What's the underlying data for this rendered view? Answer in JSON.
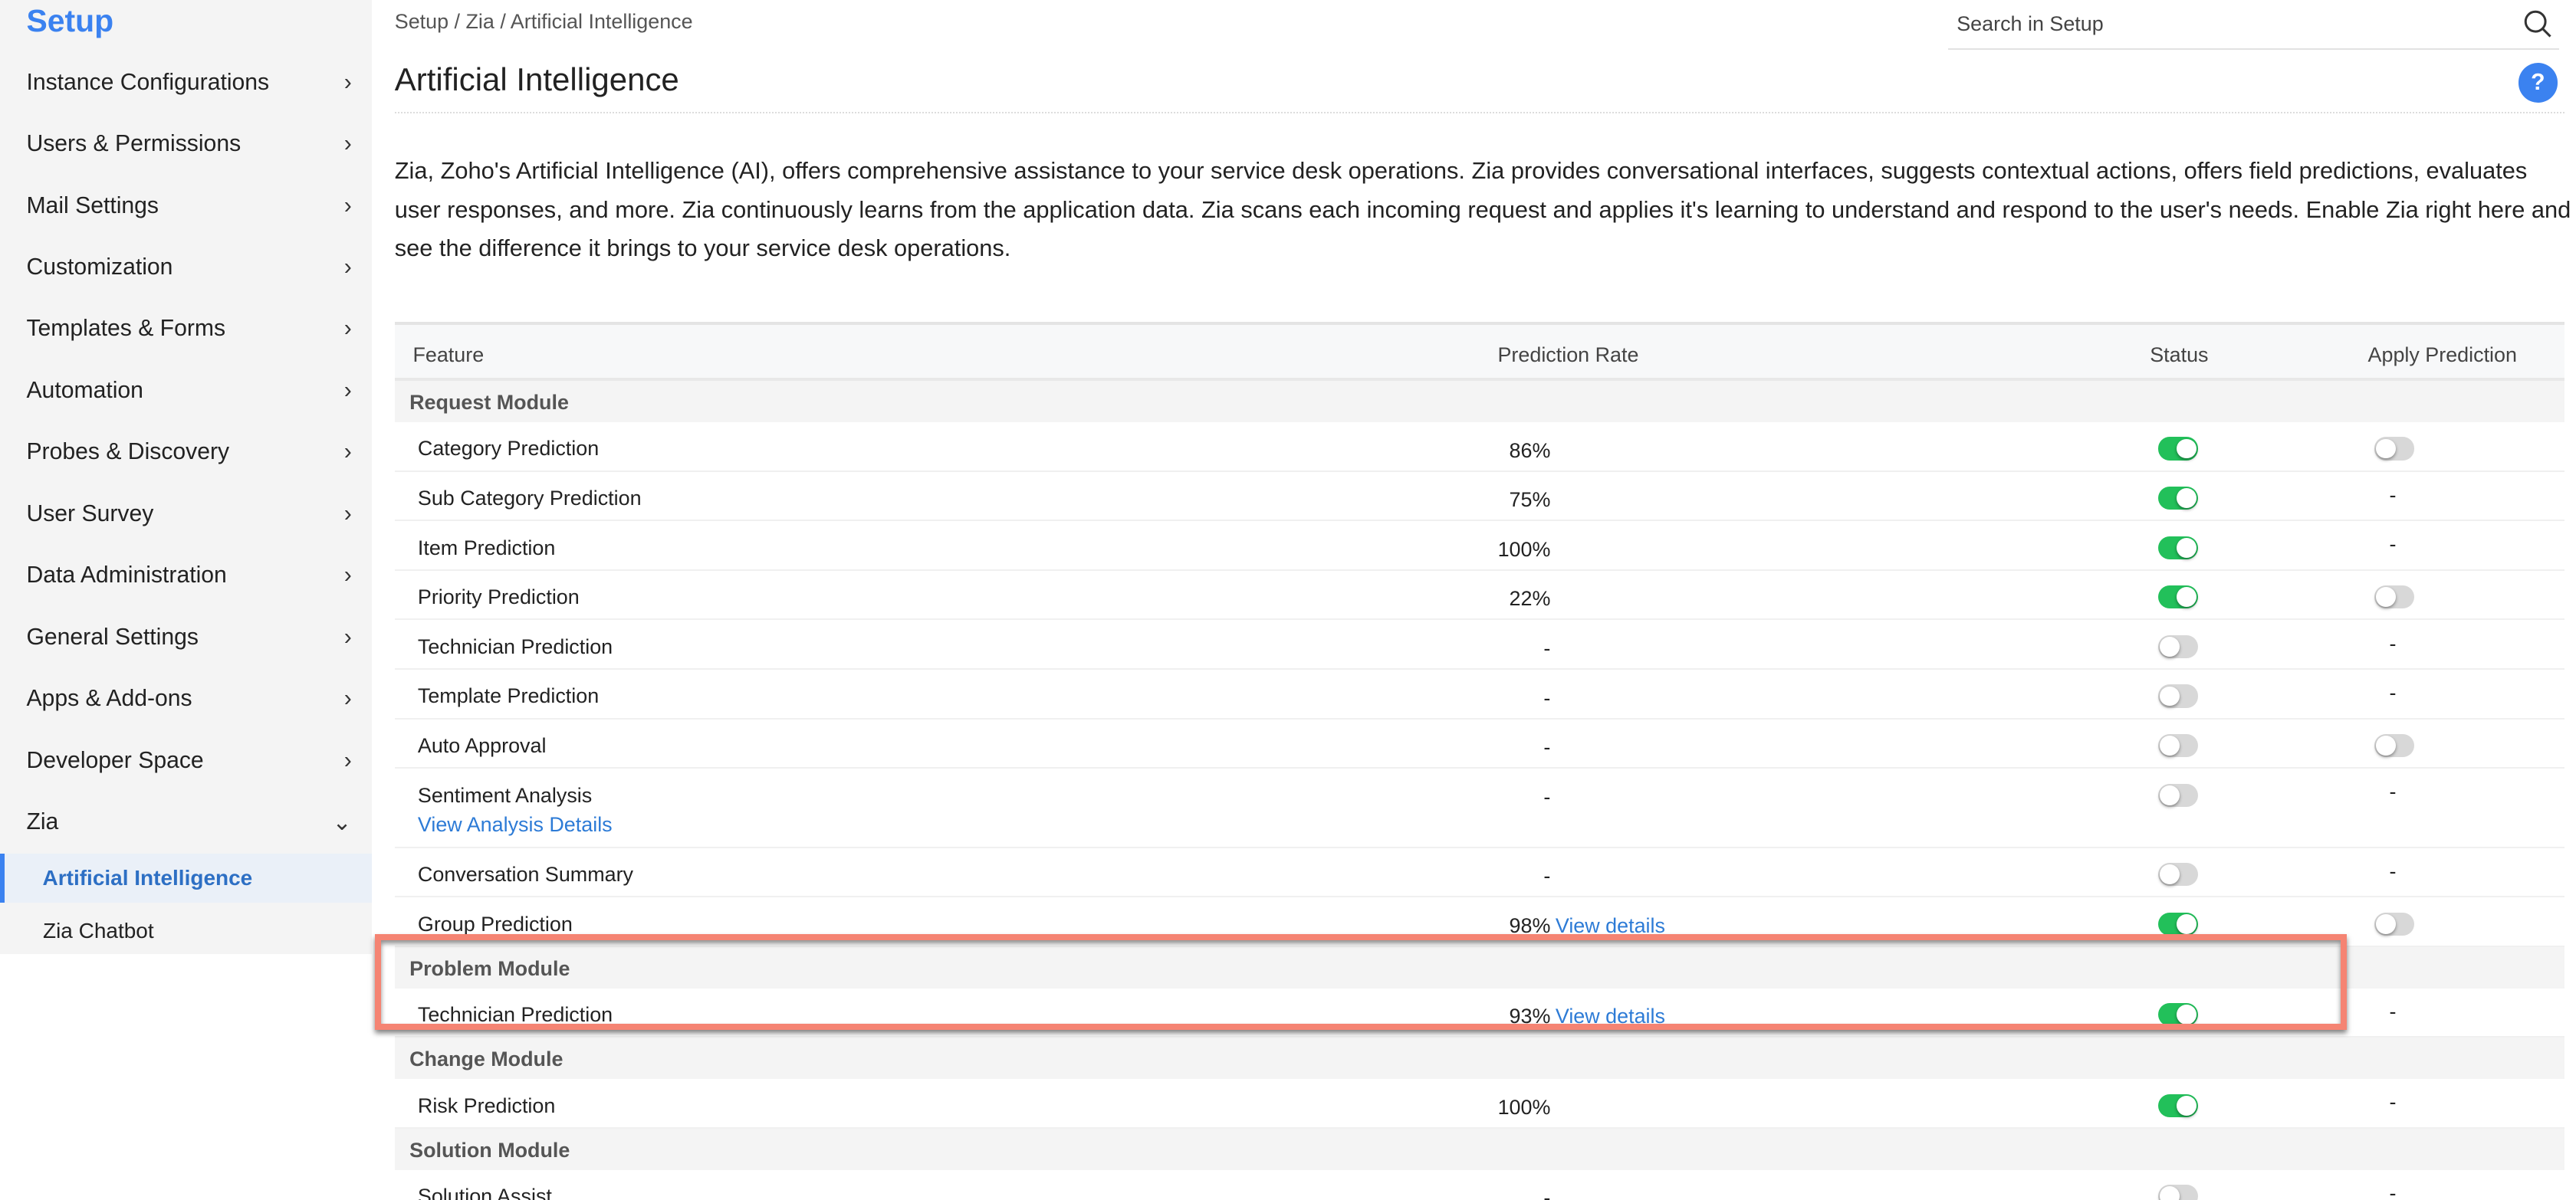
{
  "sidebar": {
    "title": "Setup",
    "items": [
      {
        "label": "Instance Configurations"
      },
      {
        "label": "Users & Permissions"
      },
      {
        "label": "Mail Settings"
      },
      {
        "label": "Customization"
      },
      {
        "label": "Templates & Forms"
      },
      {
        "label": "Automation"
      },
      {
        "label": "Probes & Discovery"
      },
      {
        "label": "User Survey"
      },
      {
        "label": "Data Administration"
      },
      {
        "label": "General Settings"
      },
      {
        "label": "Apps & Add-ons"
      },
      {
        "label": "Developer Space"
      },
      {
        "label": "Zia"
      }
    ],
    "sub_items": [
      {
        "label": "Artificial Intelligence",
        "active": true
      },
      {
        "label": "Zia Chatbot",
        "active": false
      }
    ]
  },
  "header": {
    "breadcrumb": "Setup / Zia / Artificial Intelligence",
    "search_placeholder": "Search in Setup",
    "title": "Artificial Intelligence",
    "help": "?"
  },
  "description": "Zia, Zoho's Artificial Intelligence (AI), offers comprehensive assistance to your service desk operations. Zia provides conversational interfaces, suggests contextual actions, offers field predictions, evaluates user responses, and more. Zia continuously learns from the application data. Zia scans each incoming request and applies it's learning to understand and respond to the user's needs. Enable Zia right here and see the difference it brings to your service desk operations.",
  "table": {
    "columns": [
      "Feature",
      "Prediction Rate",
      "Status",
      "Apply Prediction"
    ],
    "sections": [
      {
        "name": "Request Module",
        "rows": [
          {
            "feature": "Category Prediction",
            "rate": "86%",
            "status": true,
            "apply": false
          },
          {
            "feature": "Sub Category Prediction",
            "rate": "75%",
            "status": true,
            "apply": "-"
          },
          {
            "feature": "Item Prediction",
            "rate": "100%",
            "status": true,
            "apply": "-"
          },
          {
            "feature": "Priority Prediction",
            "rate": "22%",
            "status": true,
            "apply": false
          },
          {
            "feature": "Technician Prediction",
            "rate": "-",
            "status": false,
            "apply": "-"
          },
          {
            "feature": "Template Prediction",
            "rate": "-",
            "status": false,
            "apply": "-"
          },
          {
            "feature": "Auto Approval",
            "rate": "-",
            "status": false,
            "apply": false
          },
          {
            "feature": "Sentiment Analysis",
            "link": "View Analysis Details",
            "rate": "-",
            "status": false,
            "apply": "-"
          },
          {
            "feature": "Conversation Summary",
            "rate": "-",
            "status": false,
            "apply": "-"
          },
          {
            "feature": "Group Prediction",
            "rate": "98%",
            "details": "View details",
            "status": true,
            "apply": false
          }
        ]
      },
      {
        "name": "Problem Module",
        "highlighted": true,
        "rows": [
          {
            "feature": "Technician Prediction",
            "rate": "93%",
            "details": "View details",
            "status": true,
            "apply": "-"
          }
        ]
      },
      {
        "name": "Change Module",
        "rows": [
          {
            "feature": "Risk Prediction",
            "rate": "100%",
            "status": true,
            "apply": "-"
          }
        ]
      },
      {
        "name": "Solution Module",
        "rows": [
          {
            "feature": "Solution Assist",
            "rate": "-",
            "status": false,
            "apply": "-"
          }
        ]
      }
    ]
  },
  "colors": {
    "accent": "#3b82f0",
    "toggle_on": "#22c05a",
    "highlight": "#f58473"
  }
}
